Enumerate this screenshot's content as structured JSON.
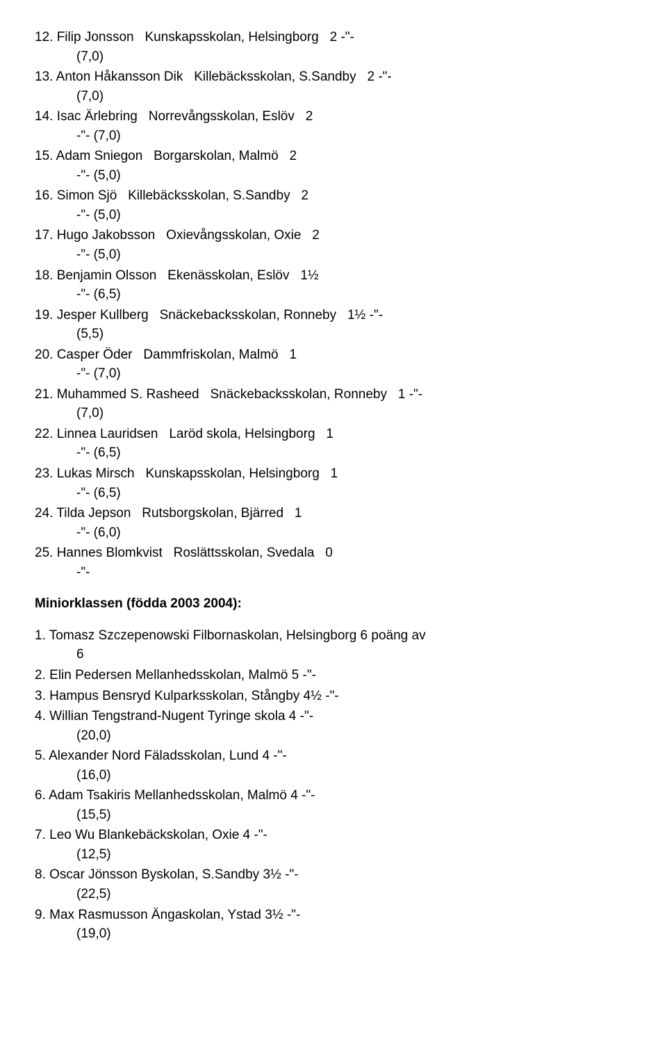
{
  "group_a": {
    "rows": [
      {
        "num": "12.",
        "name": "Filip Jonsson",
        "school": "Kunskapsskolan, Helsingborg",
        "score": "2",
        "suffix": "-\"-",
        "tie": "(7,0)"
      },
      {
        "num": "13.",
        "name": "Anton Håkansson Dik",
        "school": "Killebäcksskolan, S.Sandby",
        "score": "2",
        "suffix": "-\"-",
        "tie": "(7,0)"
      },
      {
        "num": "14.",
        "name": "Isac Ärlebring",
        "school": "Norrevångsskolan, Eslöv",
        "score": "2",
        "suffix": "",
        "tie": "-\"-    (7,0)"
      },
      {
        "num": "15.",
        "name": "Adam Sniegon",
        "school": "Borgarskolan, Malmö",
        "score": "2",
        "suffix": "",
        "tie": "-\"-    (5,0)"
      },
      {
        "num": "16.",
        "name": "Simon Sjö",
        "school": "Killebäcksskolan, S.Sandby",
        "score": "2",
        "suffix": "",
        "tie": "-\"-    (5,0)"
      },
      {
        "num": "17.",
        "name": "Hugo Jakobsson",
        "school": "Oxievångsskolan, Oxie",
        "score": "2",
        "suffix": "",
        "tie": "-\"-    (5,0)"
      },
      {
        "num": "18.",
        "name": "Benjamin Olsson",
        "school": "Ekenässkolan, Eslöv",
        "score": "1½",
        "suffix": "",
        "tie": "-\"-    (6,5)"
      },
      {
        "num": "19.",
        "name": "Jesper Kullberg",
        "school": "Snäckebacksskolan, Ronneby",
        "score": "1½",
        "suffix": "-\"-",
        "tie": "(5,5)"
      },
      {
        "num": "20.",
        "name": "Casper Öder",
        "school": "Dammfriskolan, Malmö",
        "score": "1",
        "suffix": "",
        "tie": "-\"-    (7,0)"
      },
      {
        "num": "21.",
        "name": "Muhammed S. Rasheed",
        "school": "Snäckebacksskolan, Ronneby",
        "score": "1",
        "suffix": "-\"-",
        "tie": "(7,0)"
      },
      {
        "num": "22.",
        "name": "Linnea Lauridsen",
        "school": "Laröd skola, Helsingborg",
        "score": "1",
        "suffix": "",
        "tie": "-\"-    (6,5)"
      },
      {
        "num": "23.",
        "name": "Lukas Mirsch",
        "school": "Kunskapsskolan, Helsingborg",
        "score": "1",
        "suffix": "",
        "tie": "-\"-    (6,5)"
      },
      {
        "num": "24.",
        "name": "Tilda Jepson",
        "school": "Rutsborgskolan, Bjärred",
        "score": "1",
        "suffix": "",
        "tie": "-\"-    (6,0)"
      },
      {
        "num": "25.",
        "name": "Hannes Blomkvist",
        "school": "Roslättsskolan, Svedala",
        "score": "0",
        "suffix": "",
        "tie": "-\"-"
      }
    ]
  },
  "heading": "Miniorklassen (födda 2003 2004):",
  "group_b": {
    "rows": [
      {
        "num": "1.",
        "line1": "Tomasz Szczepenowski Filbornaskolan, Helsingborg      6   poäng av",
        "line2": "6",
        "wrap": true
      },
      {
        "num": "2.",
        "line1": "Elin Pedersen             Mellanhedsskolan, Malmö        5    -\"-",
        "line2": "",
        "wrap": false
      },
      {
        "num": "3.",
        "line1": "Hampus Bensryd         Kulparksskolan, Stångby          4½   -\"-",
        "line2": "",
        "wrap": false
      },
      {
        "num": "4.",
        "line1": "Willian Tengstrand-Nugent Tyringe  skola                       4    -\"-",
        "line2": "(20,0)",
        "wrap": true
      },
      {
        "num": "5.",
        "line1": "Alexander Nord              Fäladsskolan, Lund                  4    -\"-",
        "line2": "(16,0)",
        "wrap": true
      },
      {
        "num": "6.",
        "line1": "Adam Tsakiris                 Mellanhedsskolan, Malmö        4    -\"-",
        "line2": "(15,5)",
        "wrap": true
      },
      {
        "num": "7.",
        "line1": "Leo Wu                           Blankebäckskolan, Oxie           4    -\"-",
        "line2": "(12,5)",
        "wrap": true
      },
      {
        "num": "8.",
        "line1": "Oscar Jönsson                Byskolan, S.Sandby               3½  -\"-",
        "line2": "(22,5)",
        "wrap": true
      },
      {
        "num": "9.",
        "line1": "Max Rasmusson             Ängaskolan, Ystad                 3½  -\"-",
        "line2": "(19,0)",
        "wrap": true
      }
    ]
  }
}
